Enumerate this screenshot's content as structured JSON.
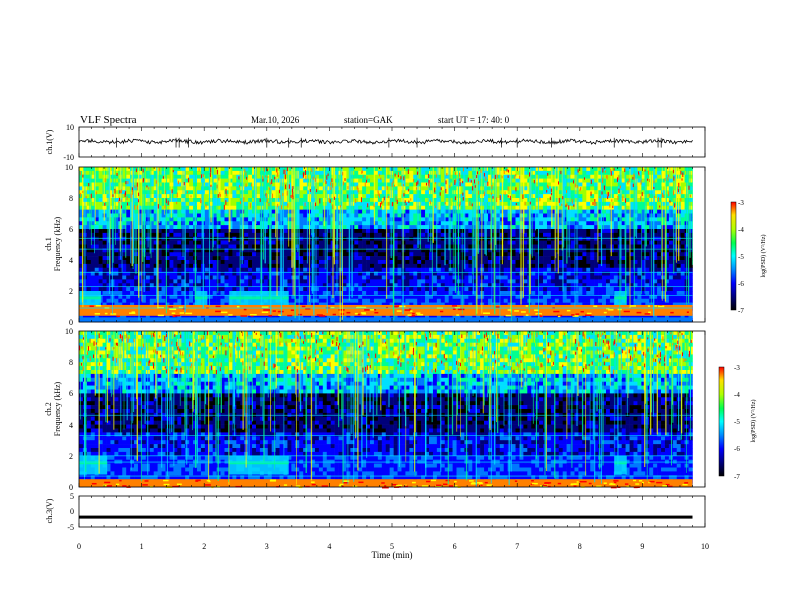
{
  "header": {
    "title": "VLF  Spectra",
    "date": "Mar.10, 2026",
    "station": "station=GAK",
    "start": "start  UT  =   17: 40: 0"
  },
  "chart_data": [
    {
      "id": "ch1-waveform",
      "type": "line",
      "ylabel": "ch.1(V)",
      "ylim": [
        -10,
        10
      ],
      "yticks": [
        "10",
        "-10"
      ],
      "trace": {
        "level": 0.3,
        "noise": 1.2,
        "end_min": 9.8
      },
      "spikes_min": [
        0.6,
        1.55,
        1.6,
        1.75,
        3.0,
        3.35,
        3.55,
        4.95,
        5.4,
        6.75,
        7.0,
        7.55,
        8.55,
        9.25,
        9.3
      ]
    },
    {
      "id": "ch1-spectrogram",
      "type": "heatmap",
      "ylabel_top": "ch.1",
      "ylabel": "Frequency  (kHz)",
      "ylim": [
        0,
        10
      ],
      "yticks": [
        "0",
        "2",
        "4",
        "6",
        "8",
        "10"
      ],
      "data_end_min": 9.8,
      "bright_band_khz": [
        0.4,
        1.1
      ],
      "patch_band_khz": [
        1.0,
        2.0
      ],
      "patch_intervals_min": [
        [
          0.0,
          0.35
        ],
        [
          1.85,
          2.05
        ],
        [
          2.4,
          3.35
        ],
        [
          8.55,
          8.75
        ]
      ],
      "colorbar": {
        "ticks": [
          "-3",
          "-4",
          "-5",
          "-6",
          "-7"
        ],
        "label": "log(PSD) (V²/Hz)",
        "range": [
          -7,
          -3
        ]
      }
    },
    {
      "id": "ch2-spectrogram",
      "type": "heatmap",
      "ylabel_top": "ch.2",
      "ylabel": "Frequency  (kHz)",
      "ylim": [
        0,
        10
      ],
      "yticks": [
        "0",
        "2",
        "4",
        "6",
        "8",
        "10"
      ],
      "data_end_min": 9.8,
      "bright_band_khz": [
        0.0,
        0.5
      ],
      "patch_band_khz": [
        0.8,
        2.0
      ],
      "patch_intervals_min": [
        [
          0.0,
          0.45
        ],
        [
          2.4,
          3.35
        ],
        [
          8.55,
          8.75
        ]
      ],
      "colorbar": {
        "ticks": [
          "-3",
          "-4",
          "-5",
          "-6",
          "-7"
        ],
        "label": "log(PSD) (V²/Hz)",
        "range": [
          -7,
          -3
        ]
      }
    },
    {
      "id": "ch3-waveform",
      "type": "line",
      "ylabel": "ch.3(V)",
      "ylim": [
        -5,
        5
      ],
      "yticks": [
        "5",
        "0",
        "-5"
      ],
      "trace": {
        "level": -1.8,
        "end_min": 9.8
      }
    }
  ],
  "xaxis": {
    "label": "Time  (min)",
    "xlim": [
      0,
      10
    ],
    "ticks": [
      "0",
      "1",
      "2",
      "3",
      "4",
      "5",
      "6",
      "7",
      "8",
      "9",
      "10"
    ]
  },
  "colors": {
    "palette": [
      "#000000",
      "#00007a",
      "#0000ff",
      "#0078ff",
      "#00e0ff",
      "#00ff90",
      "#a0ff00",
      "#ffff00",
      "#ff8000",
      "#ff0000"
    ]
  }
}
